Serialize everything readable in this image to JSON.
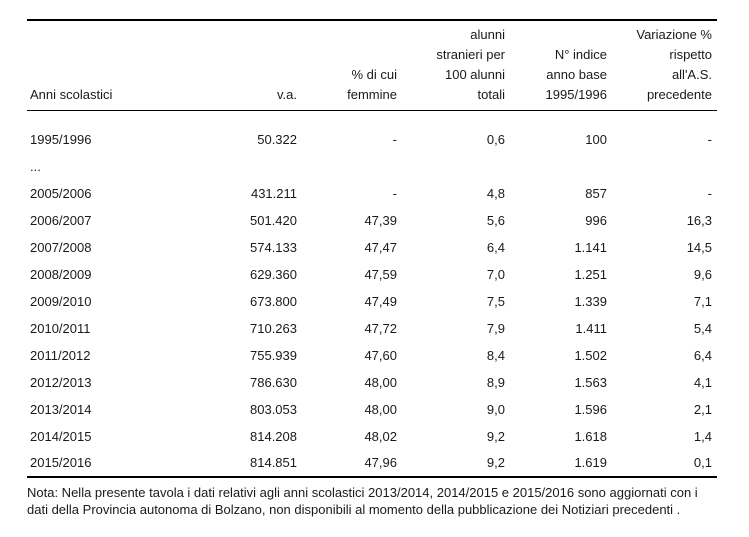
{
  "table": {
    "columns": [
      {
        "label": "Anni scolastici",
        "align": "left"
      },
      {
        "label": "v.a.",
        "align": "right"
      },
      {
        "label": "% di cui\nfemmine",
        "align": "right"
      },
      {
        "label": "alunni\nstranieri per\n100 alunni\ntotali",
        "align": "right"
      },
      {
        "label": "N° indice\nanno base\n1995/1996",
        "align": "right"
      },
      {
        "label": "Variazione %\nrispetto\nall'A.S.\nprecedente",
        "align": "right"
      }
    ],
    "rows": [
      [
        "1995/1996",
        "50.322",
        "-",
        "0,6",
        "100",
        "-"
      ],
      [
        "...",
        "",
        "",
        "",
        "",
        ""
      ],
      [
        "2005/2006",
        "431.211",
        "-",
        "4,8",
        "857",
        "-"
      ],
      [
        "2006/2007",
        "501.420",
        "47,39",
        "5,6",
        "996",
        "16,3"
      ],
      [
        "2007/2008",
        "574.133",
        "47,47",
        "6,4",
        "1.141",
        "14,5"
      ],
      [
        "2008/2009",
        "629.360",
        "47,59",
        "7,0",
        "1.251",
        "9,6"
      ],
      [
        "2009/2010",
        "673.800",
        "47,49",
        "7,5",
        "1.339",
        "7,1"
      ],
      [
        "2010/2011",
        "710.263",
        "47,72",
        "7,9",
        "1.411",
        "5,4"
      ],
      [
        "2011/2012",
        "755.939",
        "47,60",
        "8,4",
        "1.502",
        "6,4"
      ],
      [
        "2012/2013",
        "786.630",
        "48,00",
        "8,9",
        "1.563",
        "4,1"
      ],
      [
        "2013/2014",
        "803.053",
        "48,00",
        "9,0",
        "1.596",
        "2,1"
      ],
      [
        "2014/2015",
        "814.208",
        "48,02",
        "9,2",
        "1.618",
        "1,4"
      ],
      [
        "2015/2016",
        "814.851",
        "47,96",
        "9,2",
        "1.619",
        "0,1"
      ]
    ]
  },
  "note": {
    "text": "Nota: Nella presente tavola  i dati relativi agli anni scolastici 2013/2014, 2014/2015 e 2015/2016 sono aggiornati con i dati della Provincia autonoma di Bolzano, non disponibili al momento della pubblicazione dei Notiziari precedenti ."
  },
  "colors": {
    "text": "#1a1a1a",
    "rule": "#000000",
    "background": "#ffffff"
  }
}
